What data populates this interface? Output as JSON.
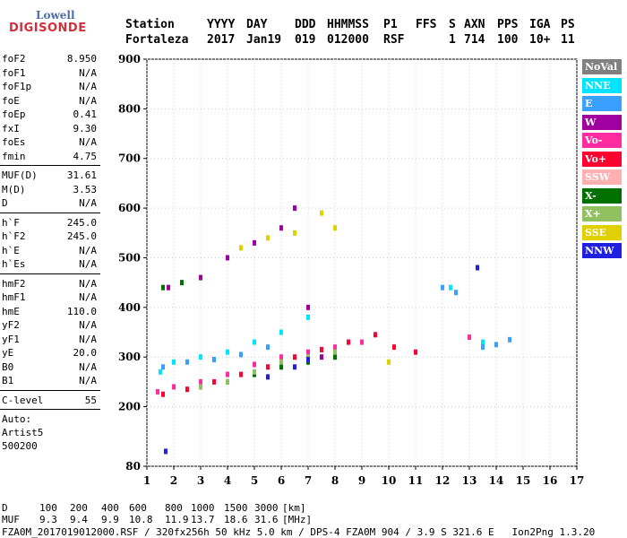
{
  "logo": {
    "line1": "Lowell",
    "line2": "DIGISONDE"
  },
  "header": {
    "labels": [
      "Station",
      "YYYY",
      "DAY",
      "DDD",
      "HHMMSS",
      "P1",
      "FFS",
      "S",
      "AXN",
      "PPS",
      "IGA",
      "PS"
    ],
    "values": [
      "Fortaleza",
      "2017",
      "Jan19",
      "019",
      "012000",
      "RSF",
      "1",
      "714",
      "100",
      "10+",
      "11"
    ]
  },
  "params": [
    [
      {
        "name": "foF2",
        "value": "8.950"
      },
      {
        "name": "foF1",
        "value": "N/A"
      },
      {
        "name": "foF1p",
        "value": "N/A"
      },
      {
        "name": "foE",
        "value": "N/A"
      },
      {
        "name": "foEp",
        "value": "0.41"
      },
      {
        "name": "fxI",
        "value": "9.30"
      },
      {
        "name": "foEs",
        "value": "N/A"
      },
      {
        "name": "fmin",
        "value": "4.75"
      }
    ],
    [
      {
        "name": "MUF(D)",
        "value": "31.61"
      },
      {
        "name": "M(D)",
        "value": "3.53"
      },
      {
        "name": "D",
        "value": "N/A"
      }
    ],
    [
      {
        "name": "h`F",
        "value": "245.0"
      },
      {
        "name": "h`F2",
        "value": "245.0"
      },
      {
        "name": "h`E",
        "value": "N/A"
      },
      {
        "name": "h`Es",
        "value": "N/A"
      }
    ],
    [
      {
        "name": "hmF2",
        "value": "N/A"
      },
      {
        "name": "hmF1",
        "value": "N/A"
      },
      {
        "name": "hmE",
        "value": "110.0"
      },
      {
        "name": "yF2",
        "value": "N/A"
      },
      {
        "name": "yF1",
        "value": "N/A"
      },
      {
        "name": "yE",
        "value": "20.0"
      },
      {
        "name": "B0",
        "value": "N/A"
      },
      {
        "name": "B1",
        "value": "N/A"
      }
    ],
    [
      {
        "name": "C-level",
        "value": "55"
      }
    ]
  ],
  "auto": {
    "label": "Auto:",
    "name": "Artist5",
    "version": "500200"
  },
  "legend": [
    {
      "label": "NoVal",
      "color": "#808080"
    },
    {
      "label": "NNE",
      "color": "#00e5ff"
    },
    {
      "label": "E",
      "color": "#3aa0ff"
    },
    {
      "label": "W",
      "color": "#a000a0"
    },
    {
      "label": "Vo-",
      "color": "#ff2da0"
    },
    {
      "label": "Vo+",
      "color": "#ff0030"
    },
    {
      "label": "SSW",
      "color": "#ffb0b0"
    },
    {
      "label": "X-",
      "color": "#007000"
    },
    {
      "label": "X+",
      "color": "#90c060"
    },
    {
      "label": "SSE",
      "color": "#e0d000"
    },
    {
      "label": "NNW",
      "color": "#2020e0"
    }
  ],
  "chart_data": {
    "type": "scatter",
    "title": "",
    "xlabel": "",
    "ylabel": "",
    "xlim": [
      1,
      17
    ],
    "ylim": [
      80,
      900
    ],
    "x_ticks": [
      1,
      2,
      3,
      4,
      5,
      6,
      7,
      8,
      9,
      10,
      11,
      12,
      13,
      14,
      15,
      16,
      17
    ],
    "y_ticks": [
      80,
      200,
      300,
      400,
      500,
      600,
      700,
      800,
      900
    ],
    "grid": true,
    "series": [
      {
        "name": "NNE",
        "points": [
          [
            1.5,
            270
          ],
          [
            2.0,
            290
          ],
          [
            3.0,
            300
          ],
          [
            4.0,
            310
          ],
          [
            5.0,
            330
          ],
          [
            6.0,
            350
          ],
          [
            7.0,
            380
          ],
          [
            12.3,
            440
          ],
          [
            13.5,
            330
          ]
        ]
      },
      {
        "name": "E",
        "points": [
          [
            1.6,
            280
          ],
          [
            2.5,
            290
          ],
          [
            3.5,
            295
          ],
          [
            4.5,
            305
          ],
          [
            5.5,
            320
          ],
          [
            12.0,
            440
          ],
          [
            12.5,
            430
          ],
          [
            13.5,
            320
          ],
          [
            14.0,
            325
          ],
          [
            14.5,
            335
          ]
        ]
      },
      {
        "name": "W",
        "points": [
          [
            1.8,
            440
          ],
          [
            3.0,
            460
          ],
          [
            4.0,
            500
          ],
          [
            5.0,
            530
          ],
          [
            6.0,
            560
          ],
          [
            6.5,
            600
          ],
          [
            7.0,
            400
          ],
          [
            7.5,
            300
          ]
        ]
      },
      {
        "name": "Vo-",
        "points": [
          [
            1.4,
            230
          ],
          [
            2.0,
            240
          ],
          [
            3.0,
            250
          ],
          [
            4.0,
            265
          ],
          [
            5.0,
            285
          ],
          [
            6.0,
            300
          ],
          [
            7.0,
            310
          ],
          [
            8.0,
            320
          ],
          [
            9.0,
            330
          ],
          [
            13.0,
            340
          ]
        ]
      },
      {
        "name": "Vo+",
        "points": [
          [
            1.6,
            225
          ],
          [
            2.5,
            235
          ],
          [
            3.5,
            250
          ],
          [
            4.5,
            265
          ],
          [
            5.5,
            280
          ],
          [
            6.5,
            300
          ],
          [
            7.5,
            315
          ],
          [
            8.5,
            330
          ],
          [
            9.5,
            345
          ],
          [
            10.2,
            320
          ],
          [
            11.0,
            310
          ]
        ]
      },
      {
        "name": "X-",
        "points": [
          [
            1.6,
            440
          ],
          [
            2.3,
            450
          ],
          [
            4.0,
            250
          ],
          [
            5.0,
            265
          ],
          [
            6.0,
            280
          ],
          [
            7.0,
            290
          ],
          [
            8.0,
            300
          ]
        ]
      },
      {
        "name": "X+",
        "points": [
          [
            3.0,
            240
          ],
          [
            4.0,
            250
          ],
          [
            5.0,
            270
          ],
          [
            6.0,
            290
          ],
          [
            7.0,
            300
          ],
          [
            8.0,
            310
          ]
        ]
      },
      {
        "name": "SSE",
        "points": [
          [
            4.5,
            520
          ],
          [
            5.5,
            540
          ],
          [
            6.5,
            550
          ],
          [
            7.5,
            590
          ],
          [
            8.0,
            560
          ],
          [
            10.0,
            290
          ]
        ]
      },
      {
        "name": "NNW",
        "points": [
          [
            1.7,
            110
          ],
          [
            5.5,
            260
          ],
          [
            6.5,
            280
          ],
          [
            7.0,
            295
          ],
          [
            13.3,
            480
          ]
        ]
      }
    ]
  },
  "bottom": {
    "d_label": "D",
    "d_values": [
      "100",
      "200",
      "400",
      "600",
      "800",
      "1000",
      "1500",
      "3000"
    ],
    "d_unit": "[km]",
    "muf_label": "MUF",
    "muf_values": [
      "9.3",
      "9.4",
      "9.9",
      "10.8",
      "11.9",
      "13.7",
      "18.6",
      "31.6"
    ],
    "muf_unit": "[MHz]",
    "footer": "FZA0M_2017019012000.RSF / 320fx256h 50 kHz 5.0 km / DPS-4 FZA0M 904 / 3.9 S 321.6 E   Ion2Png 1.3.20"
  }
}
